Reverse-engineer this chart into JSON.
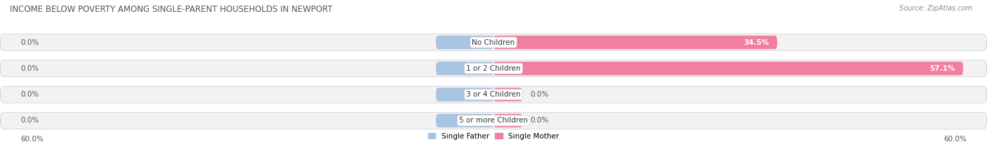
{
  "title": "INCOME BELOW POVERTY AMONG SINGLE-PARENT HOUSEHOLDS IN NEWPORT",
  "source": "Source: ZipAtlas.com",
  "categories": [
    "No Children",
    "1 or 2 Children",
    "3 or 4 Children",
    "5 or more Children"
  ],
  "single_father": [
    0.0,
    0.0,
    0.0,
    0.0
  ],
  "single_mother": [
    34.5,
    57.1,
    0.0,
    0.0
  ],
  "axis_max": 60.0,
  "father_color": "#a8c4e0",
  "mother_color": "#f07fa0",
  "bar_bg_color": "#f2f2f2",
  "bar_edge_color": "#cccccc",
  "title_fontsize": 8.5,
  "label_fontsize": 7.5,
  "tick_fontsize": 7.5,
  "source_fontsize": 7,
  "legend_fontsize": 7.5,
  "axis_label_left": "60.0%",
  "axis_label_right": "60.0%",
  "father_stub": 7.0,
  "mother_stub": 3.5
}
